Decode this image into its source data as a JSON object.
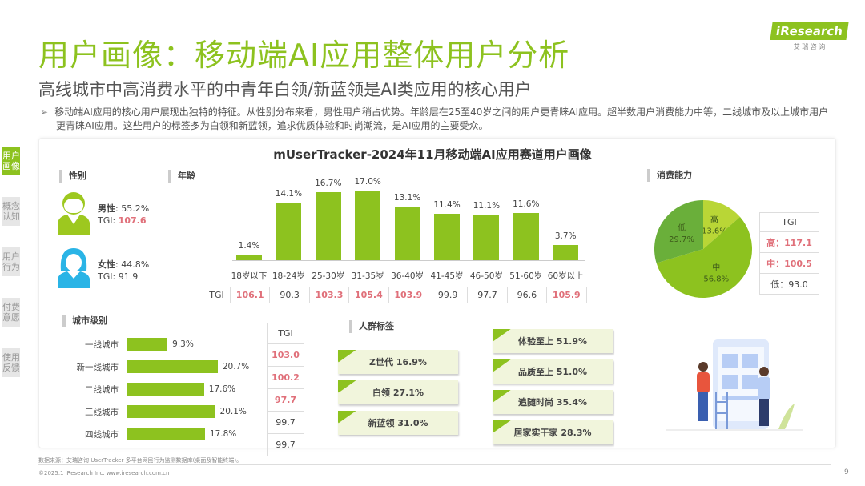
{
  "header": {
    "title": "用户画像：移动端AI应用整体用户分析",
    "subtitle": "高线城市中高消费水平的中青年白领/新蓝领是AI类应用的核心用户",
    "bullet": "移动端AI应用的核心用户展现出独特的特征。从性别分布来看，男性用户稍占优势。年龄层在25至40岁之间的用户更青睐AI应用。超半数用户消费能力中等，二线城市及以上城市用户更青睐AI应用。这些用户的标签多为白领和新蓝领，追求优质体验和时尚潮流，是AI应用的主要受众。",
    "logo": "iResearch",
    "logo_sub": "艾 瑞 咨 询"
  },
  "sidebar": {
    "items": [
      {
        "label": "用户画像",
        "active": true
      },
      {
        "label": "概念认知"
      },
      {
        "label": "用户行为"
      },
      {
        "label": "付费意愿"
      },
      {
        "label": "使用反馈"
      }
    ]
  },
  "colors": {
    "accent": "#8dc21f",
    "tgi_high": "#e0707a",
    "female": "#2ab4e6"
  },
  "chart_title": "mUserTracker-2024年11月移动端AI应用赛道用户画像",
  "gender": {
    "title": "性别",
    "male": {
      "label": "男性",
      "value": "55.2%",
      "tgi_label": "TGI:",
      "tgi": "107.6"
    },
    "female": {
      "label": "女性",
      "value": "44.8%",
      "tgi_label": "TGI:",
      "tgi": "91.9"
    }
  },
  "chart_data": [
    {
      "type": "bar",
      "title": "年龄",
      "categories": [
        "18岁以下",
        "18-24岁",
        "25-30岁",
        "31-35岁",
        "36-40岁",
        "41-45岁",
        "46-50岁",
        "51-60岁",
        "60岁以上"
      ],
      "values": [
        1.4,
        14.1,
        16.7,
        17.0,
        13.1,
        11.4,
        11.1,
        11.6,
        3.7
      ],
      "labels": [
        "1.4%",
        "14.1%",
        "16.7%",
        "17.0%",
        "13.1%",
        "11.4%",
        "11.1%",
        "11.6%",
        "3.7%"
      ],
      "tgi_label": "TGI",
      "tgi": [
        "106.1",
        "90.3",
        "103.3",
        "105.4",
        "103.9",
        "99.9",
        "97.7",
        "96.6",
        "105.9"
      ],
      "tgi_high": [
        true,
        false,
        true,
        true,
        true,
        false,
        false,
        false,
        true
      ]
    },
    {
      "type": "bar",
      "orientation": "horizontal",
      "title": "城市级别",
      "categories": [
        "一线城市",
        "新一线城市",
        "二线城市",
        "三线城市",
        "四线城市"
      ],
      "values": [
        9.3,
        20.7,
        17.6,
        20.1,
        17.8
      ],
      "labels": [
        "9.3%",
        "20.7%",
        "17.6%",
        "20.1%",
        "17.8%"
      ],
      "tgi_label": "TGI",
      "tgi": [
        "103.0",
        "100.2",
        "97.7",
        "99.7",
        "99.7"
      ],
      "tgi_high": [
        true,
        true,
        true,
        false,
        false
      ]
    },
    {
      "type": "pie",
      "title": "消费能力",
      "slices": [
        {
          "label": "高",
          "value": 13.6,
          "text": "13.6%",
          "color": "#b9d636"
        },
        {
          "label": "中",
          "value": 56.8,
          "text": "56.8%",
          "color": "#8dc21f"
        },
        {
          "label": "低",
          "value": 29.7,
          "text": "29.7%",
          "color": "#6aaf3a"
        }
      ],
      "tgi_label": "TGI",
      "tgi": [
        {
          "text": "高：117.1",
          "high": true
        },
        {
          "text": "中：100.5",
          "high": true
        },
        {
          "text": "低：93.0",
          "high": false
        }
      ]
    }
  ],
  "tags": {
    "title": "人群标签",
    "left": [
      "Z世代  16.9%",
      "白领  27.1%",
      "新蓝领  31.0%"
    ],
    "right": [
      "体验至上  51.9%",
      "品质至上  51.0%",
      "追随时尚  35.4%",
      "居家实干家  28.3%"
    ]
  },
  "footer": {
    "source": "数据来源：艾瑞咨询 UserTracker 多平台网民行为监测数据库(桌面及智能终端)。",
    "copyright": "©2025.1 iResearch Inc. www.iresearch.com.cn",
    "page": "9"
  }
}
